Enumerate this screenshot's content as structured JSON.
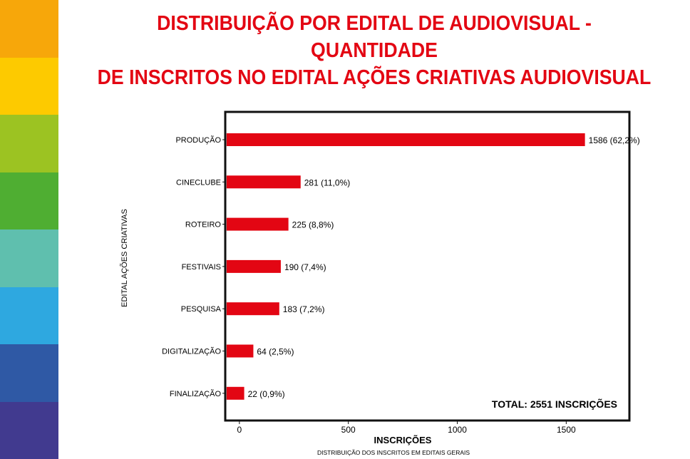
{
  "stripe_colors": [
    "#f7a70a",
    "#fdca00",
    "#9cc322",
    "#4fae32",
    "#5fbfae",
    "#2ea8e0",
    "#2f59a5",
    "#413a8f"
  ],
  "title_line1": "DISTRIBUIÇÃO POR EDITAL DE AUDIOVISUAL - QUANTIDADE",
  "title_line2": "DE INSCRITOS NO EDITAL AÇÕES CRIATIVAS AUDIOVISUAL",
  "chart_data": {
    "type": "bar",
    "orientation": "horizontal",
    "categories": [
      "PRODUÇÃO",
      "CINECLUBE",
      "ROTEIRO",
      "FESTIVAIS",
      "PESQUISA",
      "DIGITALIZAÇÃO",
      "FINALIZAÇÃO"
    ],
    "values": [
      1586,
      281,
      225,
      190,
      183,
      64,
      22
    ],
    "data_labels": [
      "1586 (62,2%)",
      "281 (11,0%)",
      "225 (8,8%)",
      "190 (7,4%)",
      "183 (7,2%)",
      "64 (2,5%)",
      "22 (0,9%)"
    ],
    "xlabel": "INSCRIÇÕES",
    "ylabel": "EDITAL AÇÕES CRIATIVAS",
    "xticks": [
      0,
      500,
      1000,
      1500
    ],
    "xlim": [
      -65,
      1790
    ],
    "bar_color": "#e30613",
    "annotation": "TOTAL: 2551 INSCRIÇÕES",
    "caption": "DISTRIBUIÇÃO DOS INSCRITOS EM EDITAIS GERAIS"
  }
}
